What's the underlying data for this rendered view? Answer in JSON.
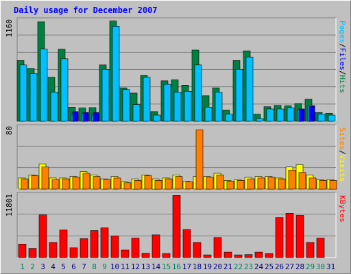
{
  "chart_data": {
    "type": "bar",
    "title": "Daily usage for December 2007",
    "categories": [
      "1",
      "2",
      "3",
      "4",
      "5",
      "6",
      "7",
      "8",
      "9",
      "10",
      "11",
      "12",
      "13",
      "14",
      "15",
      "16",
      "17",
      "18",
      "19",
      "20",
      "21",
      "22",
      "23",
      "24",
      "25",
      "26",
      "27",
      "28",
      "29",
      "30",
      "31"
    ],
    "weekend_days": [
      "1",
      "2",
      "8",
      "9",
      "15",
      "16",
      "22",
      "23",
      "29",
      "30"
    ],
    "panels": [
      {
        "id": "pages-files-hits",
        "ymax": 1160,
        "ymax_label": "1160",
        "series": [
          {
            "name": "Hits",
            "color": "#008040",
            "values": [
              690,
              600,
              1130,
              500,
              818,
              160,
              150,
              155,
              640,
              1140,
              380,
              320,
              520,
              110,
              460,
              470,
              410,
              810,
              290,
              380,
              125,
              690,
              800,
              80,
              165,
              180,
              175,
              200,
              250,
              100,
              90
            ]
          },
          {
            "name": "Files",
            "color": "#00c0ff",
            "values": [
              640,
              540,
              820,
              330,
              710,
              80,
              90,
              70,
              590,
              1080,
              360,
              190,
              500,
              70,
              420,
              330,
              340,
              640,
              160,
              330,
              80,
              590,
              730,
              30,
              140,
              140,
              150,
              130,
              180,
              80,
              70
            ]
          },
          {
            "name": "Pages",
            "color": "#0000ff",
            "values": [
              0,
              0,
              0,
              0,
              0,
              110,
              100,
              100,
              0,
              0,
              0,
              0,
              0,
              0,
              0,
              0,
              0,
              0,
              0,
              0,
              0,
              0,
              0,
              0,
              0,
              0,
              0,
              140,
              170,
              0,
              0
            ]
          }
        ],
        "axis_label_parts": [
          {
            "text": "Pages",
            "color": "#00c0ff"
          },
          {
            "text": "/",
            "color": "#000000"
          },
          {
            "text": "Files",
            "color": "#0000ff"
          },
          {
            "text": "/",
            "color": "#000000"
          },
          {
            "text": "Hits",
            "color": "#008040"
          }
        ]
      },
      {
        "id": "visits-sites",
        "ymax": 80,
        "ymax_label": "80",
        "series": [
          {
            "name": "Visits",
            "color": "#ffff00",
            "values": [
              14,
              18,
              32,
              14,
              14,
              16,
              22,
              18,
              13,
              16,
              9,
              13,
              18,
              13,
              14,
              18,
              10,
              16,
              16,
              20,
              11,
              12,
              15,
              16,
              16,
              14,
              28,
              31,
              18,
              12,
              12
            ]
          },
          {
            "name": "Sites",
            "color": "#ff8000",
            "values": [
              13,
              17,
              28,
              12,
              13,
              15,
              20,
              16,
              12,
              14,
              8,
              11,
              17,
              11,
              13,
              16,
              9,
              75,
              15,
              18,
              10,
              11,
              13,
              14,
              15,
              13,
              24,
              21,
              14,
              11,
              11
            ]
          }
        ],
        "axis_label_parts": [
          {
            "text": "Sites",
            "color": "#ff8000"
          },
          {
            "text": "/",
            "color": "#000000"
          },
          {
            "text": "Visits",
            "color": "#ffff00"
          }
        ]
      },
      {
        "id": "kbytes",
        "ymax": 11801,
        "ymax_label": "11801",
        "series": [
          {
            "name": "KBytes",
            "color": "#ff0000",
            "values": [
              2500,
              1700,
              7900,
              2800,
              5100,
              1800,
              3500,
              5000,
              5500,
              4000,
              1400,
              3600,
              800,
              4200,
              750,
              11500,
              5200,
              2800,
              500,
              3700,
              1000,
              500,
              550,
              1000,
              750,
              7400,
              8200,
              7800,
              2800,
              3600,
              0
            ]
          }
        ],
        "axis_label_parts": [
          {
            "text": "KBytes",
            "color": "#ff0000"
          }
        ]
      }
    ],
    "grid": true
  }
}
